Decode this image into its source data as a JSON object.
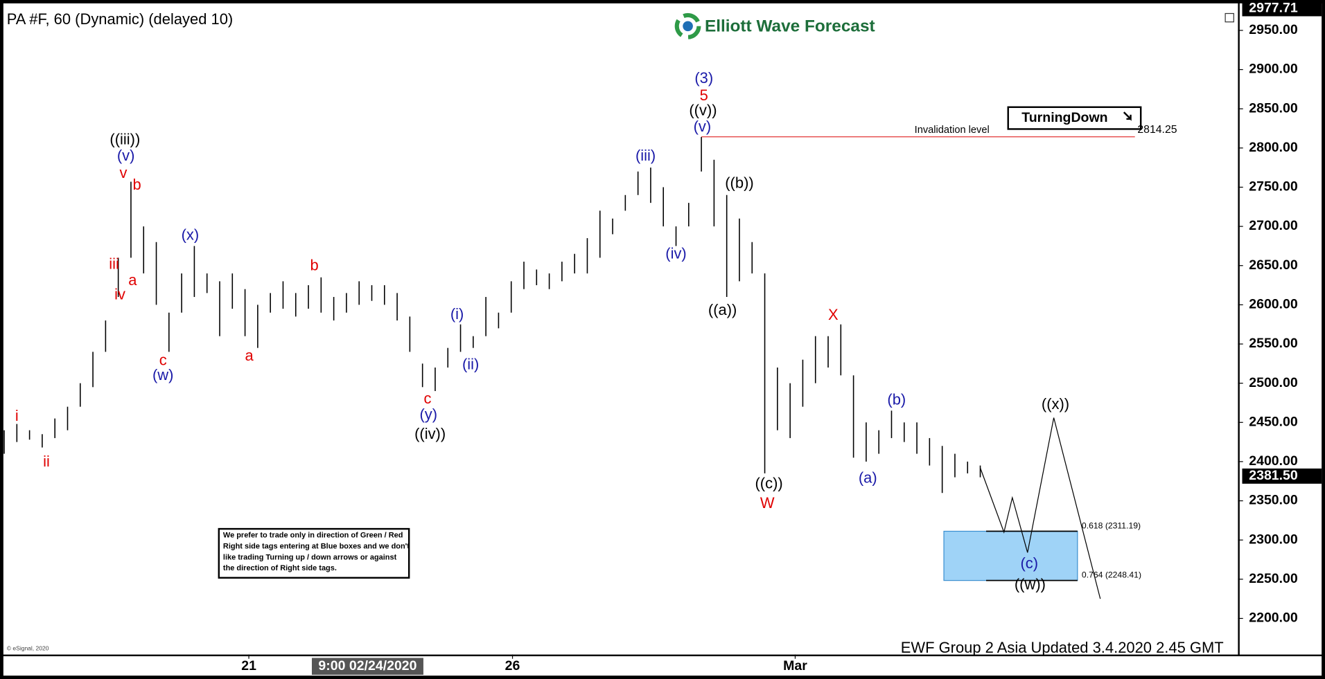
{
  "chart_data": {
    "type": "ohlc",
    "title": "PA #F, 60 (Dynamic) (delayed 10)",
    "brand": "Elliott Wave Forecast",
    "footer": "EWF Group 2 Asia Updated 3.4.2020 2.45 GMT",
    "copyright": "© eSignal, 2020",
    "tag": "TurningDown",
    "note": [
      "We prefer to trade only in direction of Green / Red",
      "Right side tags entering at Blue boxes and we don't",
      "like trading Turning up / down arrows or against",
      "the direction of Right side tags."
    ],
    "xlim": [
      -0.33,
      97.33
    ],
    "ylim": [
      2155,
      2978
    ],
    "xticks": [
      {
        "value": 19.3,
        "label": "21"
      },
      {
        "value": 40.1,
        "label": "26"
      },
      {
        "value": 62.4,
        "label": "Mar"
      }
    ],
    "xcursor": {
      "value": 28.67,
      "label": "9:00 02/24/2020"
    },
    "yticks": [
      {
        "value": 2200,
        "label": "2200.00"
      },
      {
        "value": 2250,
        "label": "2250.00"
      },
      {
        "value": 2300,
        "label": "2300.00"
      },
      {
        "value": 2350,
        "label": "2350.00"
      },
      {
        "value": 2400,
        "label": "2400.00"
      },
      {
        "value": 2450,
        "label": "2450.00"
      },
      {
        "value": 2500,
        "label": "2500.00"
      },
      {
        "value": 2550,
        "label": "2550.00"
      },
      {
        "value": 2600,
        "label": "2600.00"
      },
      {
        "value": 2650,
        "label": "2650.00"
      },
      {
        "value": 2700,
        "label": "2700.00"
      },
      {
        "value": 2750,
        "label": "2750.00"
      },
      {
        "value": 2800,
        "label": "2800.00"
      },
      {
        "value": 2850,
        "label": "2850.00"
      },
      {
        "value": 2900,
        "label": "2900.00"
      },
      {
        "value": 2950,
        "label": "2950.00"
      }
    ],
    "last_price": {
      "value": 2381.5,
      "label": "2381.50"
    },
    "top_price": {
      "value": 2977.71,
      "label": "2977.71"
    },
    "color": "#000000",
    "x": [
      0,
      1,
      2,
      3,
      4,
      5,
      6,
      7,
      8,
      9,
      10,
      11,
      12,
      13,
      14,
      15,
      16,
      17,
      18,
      19,
      20,
      21,
      22,
      23,
      24,
      25,
      26,
      27,
      28,
      29,
      30,
      31,
      32,
      33,
      34,
      35,
      36,
      37,
      38,
      39,
      40,
      41,
      42,
      43,
      44,
      45,
      46,
      47,
      48,
      49,
      50,
      51,
      52,
      53,
      54,
      55,
      56,
      57,
      58,
      59,
      60,
      61,
      62,
      63,
      64,
      65,
      66,
      67,
      68,
      69,
      70,
      71,
      72,
      73,
      74,
      75,
      76,
      77
    ],
    "high": [
      2440,
      2448,
      2440,
      2435,
      2455,
      2470,
      2500,
      2540,
      2580,
      2660,
      2757,
      2700,
      2680,
      2590,
      2640,
      2675,
      2640,
      2630,
      2640,
      2620,
      2600,
      2615,
      2630,
      2615,
      2625,
      2635,
      2610,
      2615,
      2630,
      2625,
      2625,
      2615,
      2585,
      2525,
      2520,
      2545,
      2575,
      2560,
      2610,
      2590,
      2630,
      2655,
      2645,
      2640,
      2655,
      2665,
      2685,
      2720,
      2710,
      2740,
      2770,
      2775,
      2750,
      2700,
      2730,
      2814,
      2785,
      2740,
      2710,
      2680,
      2640,
      2520,
      2500,
      2530,
      2560,
      2560,
      2575,
      2510,
      2450,
      2440,
      2465,
      2450,
      2450,
      2430,
      2420,
      2410,
      2400,
      2395
    ],
    "low": [
      2410,
      2425,
      2428,
      2418,
      2430,
      2440,
      2470,
      2495,
      2540,
      2610,
      2660,
      2640,
      2600,
      2540,
      2590,
      2610,
      2615,
      2560,
      2595,
      2560,
      2545,
      2590,
      2595,
      2585,
      2595,
      2590,
      2580,
      2590,
      2600,
      2605,
      2600,
      2580,
      2540,
      2495,
      2490,
      2520,
      2540,
      2545,
      2560,
      2570,
      2590,
      2620,
      2625,
      2620,
      2630,
      2640,
      2640,
      2660,
      2690,
      2720,
      2740,
      2730,
      2700,
      2675,
      2700,
      2770,
      2700,
      2610,
      2630,
      2640,
      2385,
      2440,
      2430,
      2470,
      2500,
      2520,
      2510,
      2405,
      2400,
      2410,
      2430,
      2425,
      2410,
      2395,
      2360,
      2380,
      2385,
      2380
    ],
    "projection": {
      "x": [
        77,
        78.87,
        79.53,
        80.73,
        82.8,
        86.47
      ],
      "values": [
        2392,
        2310,
        2354,
        2284,
        2456,
        2225
      ]
    },
    "invalidation": {
      "label": "Invalidation level",
      "value": 2814.25,
      "x": [
        55,
        89.2
      ]
    },
    "fib_box": {
      "x": [
        74.13,
        84.67
      ],
      "levels": [
        {
          "value": 2311.19,
          "label": "0.618 (2311.19)"
        },
        {
          "value": 2248.41,
          "label": "0.764 (2248.41)"
        }
      ]
    },
    "annotations": [
      {
        "text": "i",
        "x": 1,
        "y": 2457,
        "color": "#e00000"
      },
      {
        "text": "ii",
        "x": 3.33,
        "y": 2399,
        "color": "#e00000"
      },
      {
        "text": "iii",
        "x": 8.67,
        "y": 2651,
        "color": "#e00000"
      },
      {
        "text": "iv",
        "x": 9.13,
        "y": 2612,
        "color": "#e00000"
      },
      {
        "text": "v",
        "x": 9.4,
        "y": 2767,
        "color": "#e00000"
      },
      {
        "text": "a",
        "x": 10.13,
        "y": 2630,
        "color": "#e00000"
      },
      {
        "text": "b",
        "x": 10.47,
        "y": 2752,
        "color": "#e00000"
      },
      {
        "text": "c",
        "x": 12.53,
        "y": 2528,
        "color": "#e00000"
      },
      {
        "text": "(w)",
        "x": 12.53,
        "y": 2509,
        "color": "#1a1aa8"
      },
      {
        "text": "(v)",
        "x": 9.6,
        "y": 2789,
        "color": "#1a1aa8"
      },
      {
        "text": "((iii))",
        "x": 9.53,
        "y": 2810,
        "color": "#000000"
      },
      {
        "text": "(x)",
        "x": 14.67,
        "y": 2688,
        "color": "#1a1aa8"
      },
      {
        "text": "a",
        "x": 19.33,
        "y": 2534,
        "color": "#e00000"
      },
      {
        "text": "b",
        "x": 24.47,
        "y": 2649,
        "color": "#e00000"
      },
      {
        "text": "c",
        "x": 33.4,
        "y": 2479,
        "color": "#e00000"
      },
      {
        "text": "(y)",
        "x": 33.47,
        "y": 2459,
        "color": "#1a1aa8"
      },
      {
        "text": "((iv))",
        "x": 33.6,
        "y": 2434,
        "color": "#000000"
      },
      {
        "text": "(i)",
        "x": 35.73,
        "y": 2587,
        "color": "#1a1aa8"
      },
      {
        "text": "(ii)",
        "x": 36.8,
        "y": 2523,
        "color": "#1a1aa8"
      },
      {
        "text": "(iii)",
        "x": 50.6,
        "y": 2789,
        "color": "#1a1aa8"
      },
      {
        "text": "(iv)",
        "x": 53,
        "y": 2664,
        "color": "#1a1aa8"
      },
      {
        "text": "(v)",
        "x": 55.07,
        "y": 2826,
        "color": "#1a1aa8"
      },
      {
        "text": "((v))",
        "x": 55.13,
        "y": 2847,
        "color": "#000000"
      },
      {
        "text": "5",
        "x": 55.2,
        "y": 2866,
        "color": "#e00000"
      },
      {
        "text": "(3)",
        "x": 55.2,
        "y": 2888,
        "color": "#1a1aa8"
      },
      {
        "text": "((b))",
        "x": 58,
        "y": 2754,
        "color": "#000000"
      },
      {
        "text": "((a))",
        "x": 56.67,
        "y": 2592,
        "color": "#000000"
      },
      {
        "text": "((c))",
        "x": 60.33,
        "y": 2371,
        "color": "#000000"
      },
      {
        "text": "W",
        "x": 60.2,
        "y": 2346,
        "color": "#e00000"
      },
      {
        "text": "X",
        "x": 65.4,
        "y": 2586,
        "color": "#e00000"
      },
      {
        "text": "(a)",
        "x": 68.13,
        "y": 2378,
        "color": "#1a1aa8"
      },
      {
        "text": "(b)",
        "x": 70.4,
        "y": 2478,
        "color": "#1a1aa8"
      },
      {
        "text": "((x))",
        "x": 82.93,
        "y": 2472,
        "color": "#000000"
      },
      {
        "text": "(c)",
        "x": 80.87,
        "y": 2269,
        "color": "#1a1aa8"
      },
      {
        "text": "((w))",
        "x": 80.93,
        "y": 2242,
        "color": "#000000"
      }
    ]
  }
}
